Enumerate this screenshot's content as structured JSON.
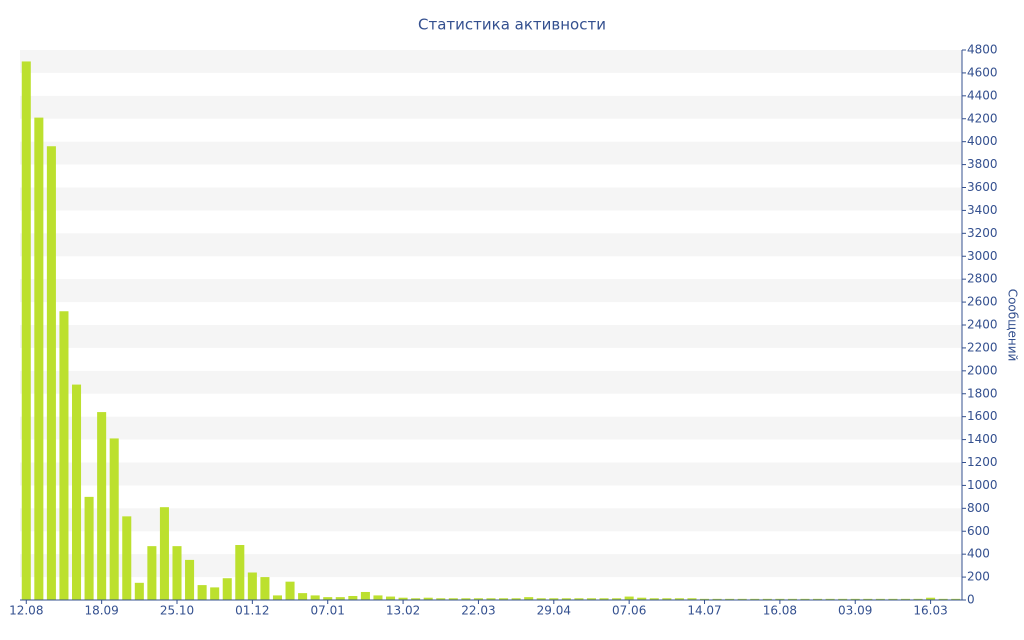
{
  "chart_data": {
    "type": "bar",
    "title": "Статистика активности",
    "y_label": "Сообщений",
    "categories": [
      "12.08",
      null,
      null,
      null,
      null,
      null,
      "18.09",
      null,
      null,
      null,
      null,
      null,
      "25.10",
      null,
      null,
      null,
      null,
      null,
      "01.12",
      null,
      null,
      null,
      null,
      null,
      "07.01",
      null,
      null,
      null,
      null,
      null,
      "13.02",
      null,
      null,
      null,
      null,
      null,
      "22.03",
      null,
      null,
      null,
      null,
      null,
      "29.04",
      null,
      null,
      null,
      null,
      null,
      "07.06",
      null,
      null,
      null,
      null,
      null,
      "14.07",
      null,
      null,
      null,
      null,
      null,
      "16.08",
      null,
      null,
      null,
      null,
      null,
      "03.09",
      null,
      null,
      null,
      null,
      null,
      "16.03",
      null,
      null
    ],
    "values": [
      4700,
      4210,
      3960,
      2520,
      1880,
      900,
      1640,
      1410,
      730,
      150,
      470,
      810,
      470,
      350,
      130,
      110,
      190,
      480,
      240,
      200,
      40,
      160,
      60,
      40,
      25,
      25,
      35,
      70,
      40,
      30,
      20,
      15,
      20,
      15,
      15,
      15,
      15,
      15,
      15,
      15,
      25,
      15,
      15,
      15,
      15,
      15,
      15,
      15,
      30,
      20,
      15,
      15,
      15,
      15,
      10,
      10,
      10,
      10,
      10,
      10,
      10,
      10,
      10,
      10,
      10,
      10,
      10,
      10,
      10,
      10,
      10,
      10,
      20,
      10,
      10
    ],
    "color": "#bce02e",
    "ylim": [
      0,
      4800
    ],
    "yticks": [
      0,
      200,
      400,
      600,
      800,
      1000,
      1200,
      1400,
      1600,
      1800,
      2000,
      2200,
      2400,
      2600,
      2800,
      3000,
      3200,
      3400,
      3600,
      3800,
      4000,
      4200,
      4400,
      4600,
      4800
    ],
    "grid": true
  }
}
